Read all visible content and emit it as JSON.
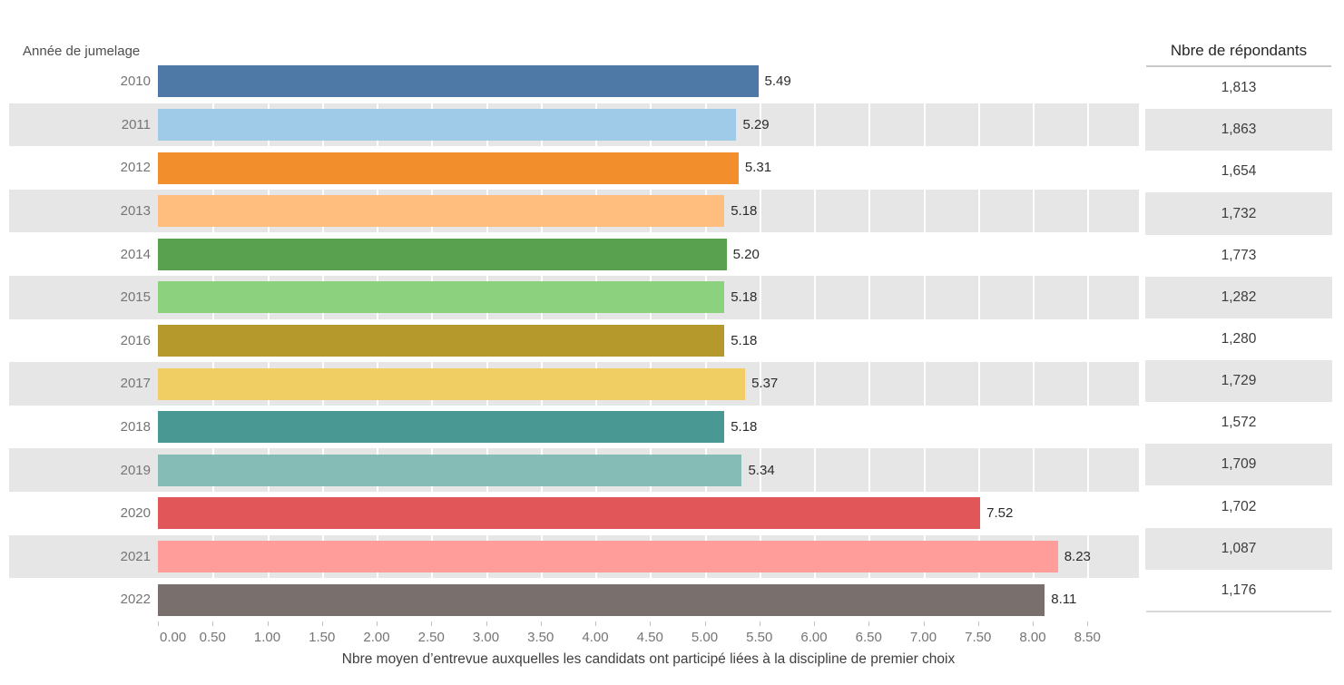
{
  "chart_data": {
    "type": "bar",
    "orientation": "horizontal",
    "row_header": "Année de jumelage",
    "categories": [
      "2010",
      "2011",
      "2012",
      "2013",
      "2014",
      "2015",
      "2016",
      "2017",
      "2018",
      "2019",
      "2020",
      "2021",
      "2022"
    ],
    "values": [
      5.49,
      5.29,
      5.31,
      5.18,
      5.2,
      5.18,
      5.18,
      5.37,
      5.18,
      5.34,
      7.52,
      8.23,
      8.11
    ],
    "value_labels": [
      "5.49",
      "5.29",
      "5.31",
      "5.18",
      "5.20",
      "5.18",
      "5.18",
      "5.37",
      "5.18",
      "5.34",
      "7.52",
      "8.23",
      "8.11"
    ],
    "colors": [
      "#4e79a7",
      "#a0cbe8",
      "#f28e2b",
      "#ffbe7d",
      "#59a14f",
      "#8cd17d",
      "#b6992d",
      "#f1ce63",
      "#499894",
      "#86bcb6",
      "#e15759",
      "#ff9d9a",
      "#79706e"
    ],
    "respondents_header": "Nbre de répondants",
    "respondents": [
      "1,813",
      "1,863",
      "1,654",
      "1,732",
      "1,773",
      "1,282",
      "1,280",
      "1,729",
      "1,572",
      "1,709",
      "1,702",
      "1,087",
      "1,176"
    ],
    "xlabel": "Nbre moyen d’entrevue auxquelles les candidats ont participé liées à la discipline de premier choix",
    "xticks": [
      "0.00",
      "0.50",
      "1.00",
      "1.50",
      "2.00",
      "2.50",
      "3.00",
      "3.50",
      "4.00",
      "4.50",
      "5.00",
      "5.50",
      "6.00",
      "6.50",
      "7.00",
      "7.50",
      "8.00",
      "8.50"
    ],
    "xlim": [
      0,
      9.0
    ],
    "xtick_step": 0.5,
    "grid": "on",
    "legend": "none",
    "band_color": "#e6e6e6",
    "banded_row_indices": [
      1,
      3,
      5,
      7,
      9,
      11
    ]
  }
}
